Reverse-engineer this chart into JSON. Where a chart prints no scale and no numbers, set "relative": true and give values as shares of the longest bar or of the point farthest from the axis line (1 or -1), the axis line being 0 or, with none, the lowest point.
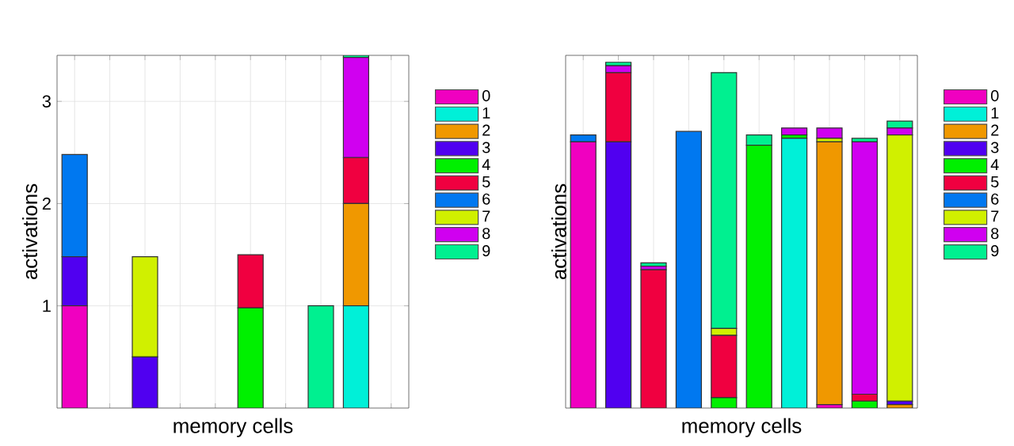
{
  "chart_data": [
    {
      "type": "bar",
      "stacked": true,
      "xlabel": "memory cells",
      "ylabel": "activations",
      "legend": "right",
      "grid": true,
      "categories": [
        null,
        null,
        null,
        null,
        null,
        null,
        null,
        null,
        null,
        null
      ],
      "ylim": [
        0,
        3.45
      ],
      "yticks": [
        1,
        2,
        3
      ],
      "series": [
        {
          "name": "0",
          "color": "#f000c0",
          "values": [
            1.0,
            0,
            0,
            0,
            0,
            0,
            0,
            0,
            0,
            0
          ]
        },
        {
          "name": "1",
          "color": "#00f0d8",
          "values": [
            0,
            0,
            0,
            0,
            0,
            0,
            0,
            0,
            1.0,
            0
          ]
        },
        {
          "name": "2",
          "color": "#f09800",
          "values": [
            0,
            0,
            0,
            0,
            0,
            0,
            0,
            0,
            1.0,
            0
          ]
        },
        {
          "name": "3",
          "color": "#5000f0",
          "values": [
            0.48,
            0,
            0.5,
            0,
            0,
            0,
            0,
            0,
            0,
            0
          ]
        },
        {
          "name": "4",
          "color": "#00f000",
          "values": [
            0,
            0,
            0,
            0,
            0,
            0.98,
            0,
            0,
            0,
            0
          ]
        },
        {
          "name": "5",
          "color": "#f00040",
          "values": [
            0,
            0,
            0,
            0,
            0,
            0.52,
            0,
            0,
            0.45,
            0
          ]
        },
        {
          "name": "6",
          "color": "#0078f0",
          "values": [
            1.0,
            0,
            0,
            0,
            0,
            0,
            0,
            0,
            0,
            0
          ]
        },
        {
          "name": "7",
          "color": "#d0f000",
          "values": [
            0,
            0,
            0.98,
            0,
            0,
            0,
            0,
            0,
            0,
            0
          ]
        },
        {
          "name": "8",
          "color": "#d000f0",
          "values": [
            0,
            0,
            0,
            0,
            0,
            0,
            0,
            0,
            0.98,
            0
          ]
        },
        {
          "name": "9",
          "color": "#00f090",
          "values": [
            0,
            0,
            0,
            0,
            0,
            0,
            0,
            1.0,
            0.02,
            0
          ]
        }
      ]
    },
    {
      "type": "bar",
      "stacked": true,
      "relative": true,
      "xlabel": "memory cells",
      "ylabel": "activations",
      "legend": "right",
      "grid": true,
      "categories": [
        null,
        null,
        null,
        null,
        null,
        null,
        null,
        null,
        null,
        null
      ],
      "series": [
        {
          "name": "0",
          "color": "#f000c0",
          "values": [
            0.77,
            0,
            0,
            0,
            0,
            0,
            0,
            0.01,
            0,
            0
          ]
        },
        {
          "name": "1",
          "color": "#00f0d8",
          "values": [
            0,
            0,
            0,
            0,
            0,
            0,
            0.78,
            0,
            0,
            0
          ]
        },
        {
          "name": "2",
          "color": "#f09800",
          "values": [
            0,
            0,
            0,
            0,
            0,
            0,
            0,
            0.76,
            0,
            0.01
          ]
        },
        {
          "name": "3",
          "color": "#5000f0",
          "values": [
            0,
            0.77,
            0,
            0,
            0,
            0,
            0,
            0,
            0,
            0.01
          ]
        },
        {
          "name": "4",
          "color": "#00f000",
          "values": [
            0,
            0,
            0,
            0,
            0.03,
            0.76,
            0.01,
            0,
            0.02,
            0
          ]
        },
        {
          "name": "5",
          "color": "#f00040",
          "values": [
            0,
            0.2,
            0.4,
            0,
            0.18,
            0,
            0,
            0,
            0.02,
            0
          ]
        },
        {
          "name": "6",
          "color": "#0078f0",
          "values": [
            0.02,
            0,
            0,
            0.8,
            0,
            0,
            0,
            0,
            0,
            0
          ]
        },
        {
          "name": "7",
          "color": "#d0f000",
          "values": [
            0,
            0,
            0,
            0,
            0.02,
            0,
            0,
            0.01,
            0,
            0.77
          ]
        },
        {
          "name": "8",
          "color": "#d000f0",
          "values": [
            0,
            0.02,
            0.01,
            0,
            0,
            0,
            0.02,
            0.03,
            0.73,
            0.02
          ]
        },
        {
          "name": "9",
          "color": "#00f090",
          "values": [
            0,
            0.01,
            0.01,
            0,
            0.74,
            0.03,
            0,
            0,
            0.01,
            0.02
          ]
        }
      ]
    }
  ]
}
